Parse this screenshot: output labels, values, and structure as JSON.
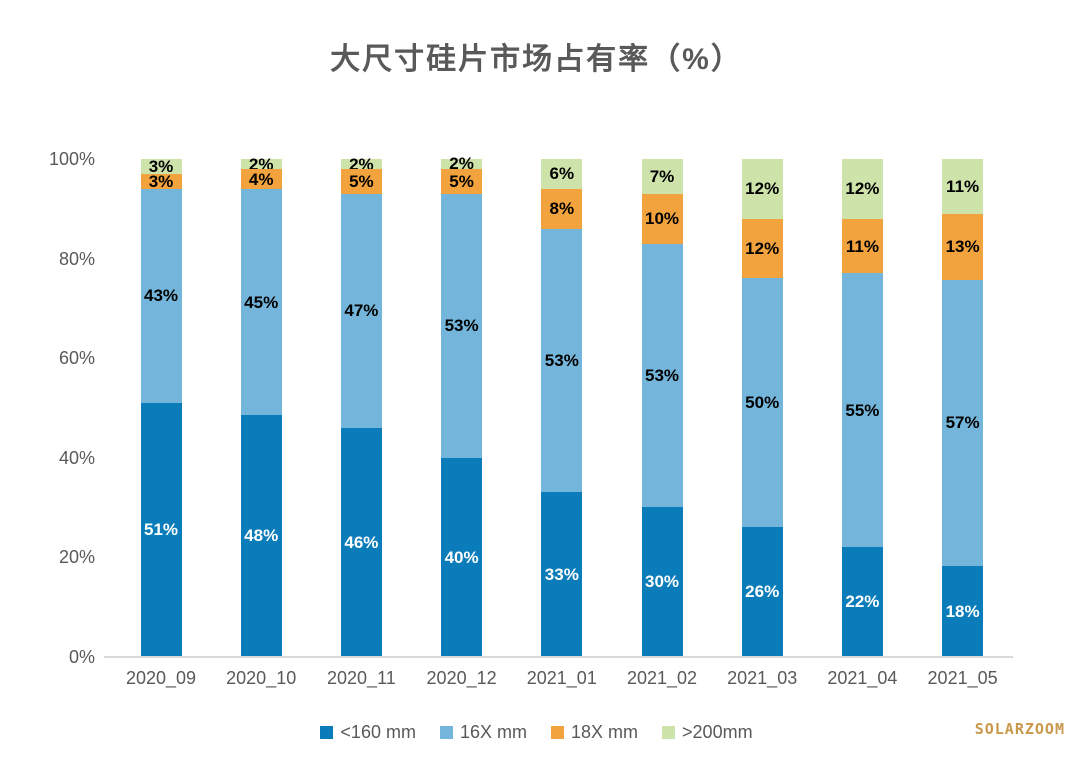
{
  "watermark": "SOLARZOOM",
  "chart_data": {
    "type": "bar",
    "variant": "stacked-100-percent",
    "title": "大尺寸硅片市场占有率（%）",
    "xlabel": "",
    "ylabel": "",
    "ylim": [
      0,
      100
    ],
    "grid": false,
    "legend_position": "bottom",
    "value_suffix": "%",
    "categories": [
      "2020_09",
      "2020_10",
      "2020_11",
      "2020_12",
      "2021_01",
      "2021_02",
      "2021_03",
      "2021_04",
      "2021_05"
    ],
    "series": [
      {
        "name": "<160 mm",
        "color": "#0b7cba",
        "label_color": "#ffffff",
        "values": [
          51,
          48,
          46,
          40,
          33,
          30,
          26,
          22,
          18
        ]
      },
      {
        "name": "16X mm",
        "color": "#74b6db",
        "label_color": "#000000",
        "values": [
          43,
          45,
          47,
          53,
          53,
          53,
          50,
          55,
          57
        ]
      },
      {
        "name": "18X mm",
        "color": "#f2a33d",
        "label_color": "#000000",
        "values": [
          3,
          4,
          5,
          5,
          8,
          10,
          12,
          11,
          13
        ]
      },
      {
        "name": ">200mm",
        "color": "#cde3aa",
        "label_color": "#000000",
        "values": [
          3,
          2,
          2,
          2,
          6,
          7,
          12,
          12,
          11
        ]
      }
    ],
    "yticks": [
      {
        "value": 0,
        "label": "0%"
      },
      {
        "value": 20,
        "label": "20%"
      },
      {
        "value": 40,
        "label": "40%"
      },
      {
        "value": 60,
        "label": "60%"
      },
      {
        "value": 80,
        "label": "80%"
      },
      {
        "value": 100,
        "label": "100%"
      }
    ],
    "text_color": "#595959",
    "axis_color": "#d9d9d9",
    "watermark_color": "#c9984b"
  }
}
